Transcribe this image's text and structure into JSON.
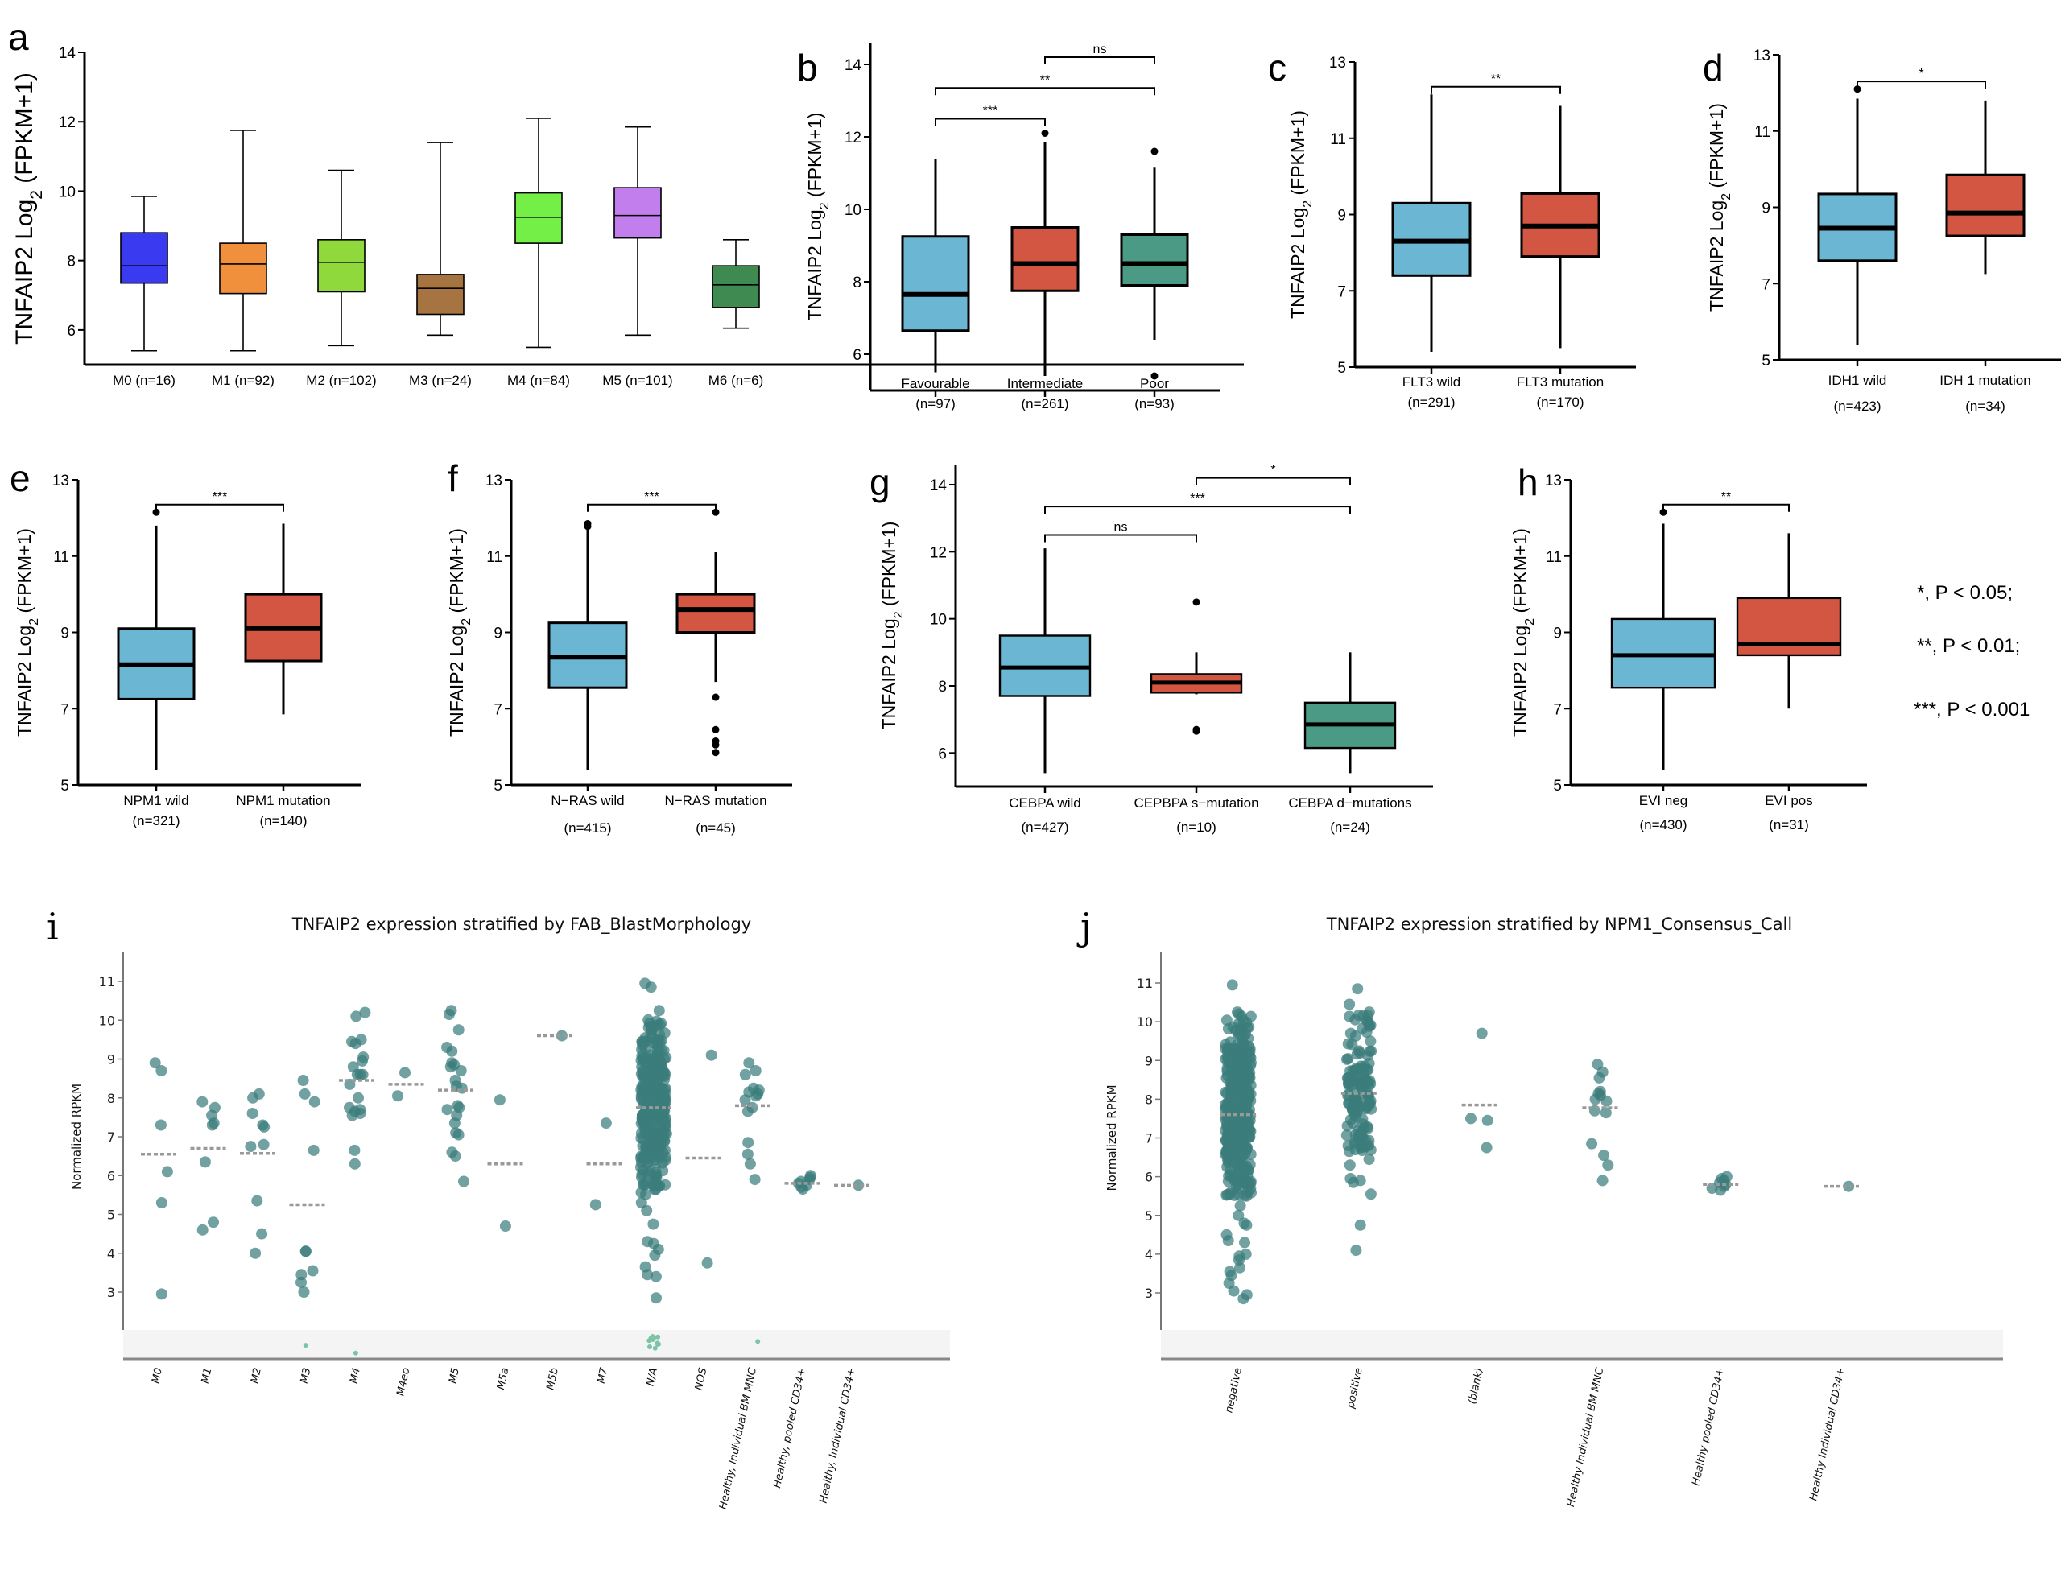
{
  "figure": {
    "legend_lines": [
      "*, P < 0.05;",
      "**, P < 0.01;",
      "***, P < 0.001"
    ]
  },
  "chart_data": [
    {
      "panel": "a",
      "type": "box",
      "ylabel_main": "TNFAIP2  Log",
      "ylabel_sub": "2",
      "ylabel_tail": " (FPKM+1)",
      "ylim": [
        5,
        14
      ],
      "yticks": [
        6,
        8,
        10,
        12,
        14
      ],
      "whisker_caps": true,
      "categories": [
        "M0 (n=16)",
        "M1 (n=92)",
        "M2 (n=102)",
        "M3 (n=24)",
        "M4 (n=84)",
        "M5 (n=101)",
        "M6 (n=6)"
      ],
      "boxes": [
        {
          "min": 5.4,
          "q1": 7.35,
          "median": 7.85,
          "q3": 8.8,
          "max": 9.85,
          "color": "#3a3af0"
        },
        {
          "min": 5.4,
          "q1": 7.05,
          "median": 7.9,
          "q3": 8.5,
          "max": 11.75,
          "color": "#f0903c"
        },
        {
          "min": 5.55,
          "q1": 7.1,
          "median": 7.95,
          "q3": 8.6,
          "max": 10.6,
          "color": "#8fd93c"
        },
        {
          "min": 5.85,
          "q1": 6.45,
          "median": 7.2,
          "q3": 7.6,
          "max": 11.4,
          "color": "#a57441"
        },
        {
          "min": 5.5,
          "q1": 8.5,
          "median": 9.25,
          "q3": 9.95,
          "max": 12.1,
          "color": "#74ef48"
        },
        {
          "min": 5.85,
          "q1": 8.65,
          "median": 9.3,
          "q3": 10.1,
          "max": 11.85,
          "color": "#c17eec"
        },
        {
          "min": 6.05,
          "q1": 6.65,
          "median": 7.3,
          "q3": 7.85,
          "max": 8.6,
          "color": "#3e8a51"
        }
      ],
      "significance": []
    },
    {
      "panel": "b",
      "type": "box",
      "ylabel_main": "TNFAIP2  Log",
      "ylabel_sub": "2",
      "ylabel_tail": " (FPKM+1)",
      "ylim": [
        5,
        14.6
      ],
      "yticks": [
        6,
        8,
        10,
        12,
        14
      ],
      "categories": [
        "Favourable",
        "Intermediate",
        "Poor"
      ],
      "n_labels": [
        "(n=97)",
        "(n=261)",
        "(n=93)"
      ],
      "boxes": [
        {
          "min": 5.5,
          "q1": 6.65,
          "median": 7.65,
          "q3": 9.25,
          "max": 11.4,
          "outliers": [],
          "color": "#6bb6d3"
        },
        {
          "min": 5.4,
          "q1": 7.75,
          "median": 8.5,
          "q3": 9.5,
          "max": 11.85,
          "outliers": [
            12.1
          ],
          "color": "#d35642"
        },
        {
          "min": 6.4,
          "q1": 7.9,
          "median": 8.5,
          "q3": 9.3,
          "max": 11.15,
          "outliers": [
            11.6,
            5.4
          ],
          "color": "#4a9a85"
        }
      ],
      "significance": [
        {
          "from": 0,
          "to": 1,
          "y": 12.5,
          "label": "***"
        },
        {
          "from": 0,
          "to": 2,
          "y": 13.35,
          "label": "**"
        },
        {
          "from": 1,
          "to": 2,
          "y": 14.2,
          "label": "ns"
        }
      ]
    },
    {
      "panel": "c",
      "type": "box",
      "ylabel_main": "TNFAIP2  Log",
      "ylabel_sub": "2",
      "ylabel_tail": " (FPKM+1)",
      "ylim": [
        5,
        13
      ],
      "yticks": [
        5,
        7,
        9,
        11,
        13
      ],
      "categories": [
        "FLT3 wild",
        "FLT3 mutation"
      ],
      "n_labels": [
        "(n=291)",
        "(n=170)"
      ],
      "boxes": [
        {
          "min": 5.4,
          "q1": 7.4,
          "median": 8.3,
          "q3": 9.3,
          "max": 12.15,
          "outliers": [],
          "color": "#6bb6d3"
        },
        {
          "min": 5.5,
          "q1": 7.9,
          "median": 8.7,
          "q3": 9.55,
          "max": 11.85,
          "outliers": [],
          "color": "#d35642"
        }
      ],
      "significance": [
        {
          "from": 0,
          "to": 1,
          "y": 12.35,
          "label": "**"
        }
      ]
    },
    {
      "panel": "d",
      "type": "box",
      "ylabel_main": "TNFAIP2  Log",
      "ylabel_sub": "2",
      "ylabel_tail": " (FPKM+1)",
      "ylim": [
        5,
        13
      ],
      "yticks": [
        5,
        7,
        9,
        11,
        13
      ],
      "categories": [
        "IDH1 wild",
        "IDH 1 mutation"
      ],
      "n_labels": [
        "(n=423)",
        "(n=34)"
      ],
      "boxes": [
        {
          "min": 5.4,
          "q1": 7.6,
          "median": 8.45,
          "q3": 9.35,
          "max": 11.85,
          "outliers": [
            12.1
          ],
          "color": "#6bb6d3"
        },
        {
          "min": 7.25,
          "q1": 8.25,
          "median": 8.85,
          "q3": 9.85,
          "max": 11.8,
          "outliers": [],
          "color": "#d35642"
        }
      ],
      "significance": [
        {
          "from": 0,
          "to": 1,
          "y": 12.3,
          "label": "*"
        }
      ]
    },
    {
      "panel": "e",
      "type": "box",
      "ylabel_main": "TNFAIP2  Log",
      "ylabel_sub": "2",
      "ylabel_tail": " (FPKM+1)",
      "ylim": [
        5,
        13
      ],
      "yticks": [
        5,
        7,
        9,
        11,
        13
      ],
      "categories": [
        "NPM1 wild",
        "NPM1 mutation"
      ],
      "n_labels": [
        "(n=321)",
        "(n=140)"
      ],
      "boxes": [
        {
          "min": 5.4,
          "q1": 7.25,
          "median": 8.15,
          "q3": 9.1,
          "max": 11.8,
          "outliers": [
            12.15
          ],
          "color": "#6bb6d3"
        },
        {
          "min": 6.85,
          "q1": 8.25,
          "median": 9.1,
          "q3": 10.0,
          "max": 11.85,
          "outliers": [],
          "color": "#d35642"
        }
      ],
      "significance": [
        {
          "from": 0,
          "to": 1,
          "y": 12.35,
          "label": "***"
        }
      ]
    },
    {
      "panel": "f",
      "type": "box",
      "ylabel_main": "TNFAIP2  Log",
      "ylabel_sub": "2",
      "ylabel_tail": " (FPKM+1)",
      "ylim": [
        5,
        13
      ],
      "yticks": [
        5,
        7,
        9,
        11,
        13
      ],
      "categories": [
        "N−RAS wild",
        "N−RAS mutation"
      ],
      "n_labels": [
        "(n=415)",
        "(n=45)"
      ],
      "boxes": [
        {
          "min": 5.4,
          "q1": 7.55,
          "median": 8.35,
          "q3": 9.25,
          "max": 11.75,
          "outliers": [
            11.85,
            11.78
          ],
          "color": "#6bb6d3"
        },
        {
          "min": 7.7,
          "q1": 9.0,
          "median": 9.6,
          "q3": 10.0,
          "max": 11.1,
          "outliers": [
            12.15,
            7.3,
            6.45,
            6.15,
            6.05,
            5.85
          ],
          "color": "#d35642"
        }
      ],
      "significance": [
        {
          "from": 0,
          "to": 1,
          "y": 12.35,
          "label": "***"
        }
      ]
    },
    {
      "panel": "g",
      "type": "box",
      "ylabel_main": "TNFAIP2  Log",
      "ylabel_sub": "2",
      "ylabel_tail": " (FPKM+1)",
      "ylim": [
        5,
        14.6
      ],
      "yticks": [
        6,
        8,
        10,
        12,
        14
      ],
      "categories": [
        "CEBPA wild",
        "CEPBPA s−mutation",
        "CEBPA d−mutations"
      ],
      "n_labels": [
        "(n=427)",
        "(n=10)",
        "(n=24)"
      ],
      "boxes": [
        {
          "min": 5.4,
          "q1": 7.7,
          "median": 8.55,
          "q3": 9.5,
          "max": 12.1,
          "outliers": [],
          "color": "#6bb6d3"
        },
        {
          "min": 7.75,
          "q1": 7.8,
          "median": 8.1,
          "q3": 8.35,
          "max": 9.0,
          "outliers": [
            10.5,
            6.7,
            6.65
          ],
          "color": "#d35642"
        },
        {
          "min": 5.4,
          "q1": 6.15,
          "median": 6.85,
          "q3": 7.5,
          "max": 9.0,
          "outliers": [],
          "color": "#4a9a85"
        }
      ],
      "significance": [
        {
          "from": 0,
          "to": 1,
          "y": 12.5,
          "label": "ns"
        },
        {
          "from": 0,
          "to": 2,
          "y": 13.35,
          "label": "***"
        },
        {
          "from": 1,
          "to": 2,
          "y": 14.2,
          "label": "*"
        }
      ]
    },
    {
      "panel": "h",
      "type": "box",
      "ylabel_main": "TNFAIP2  Log",
      "ylabel_sub": "2",
      "ylabel_tail": " (FPKM+1)",
      "ylim": [
        5,
        13
      ],
      "yticks": [
        5,
        7,
        9,
        11,
        13
      ],
      "categories": [
        "EVI neg",
        "EVI pos"
      ],
      "n_labels": [
        "(n=430)",
        "(n=31)"
      ],
      "boxes": [
        {
          "min": 5.4,
          "q1": 7.55,
          "median": 8.4,
          "q3": 9.35,
          "max": 11.85,
          "outliers": [
            12.15
          ],
          "color": "#6bb6d3"
        },
        {
          "min": 7.0,
          "q1": 8.4,
          "median": 8.7,
          "q3": 9.9,
          "max": 11.6,
          "outliers": [],
          "color": "#d35642"
        }
      ],
      "significance": [
        {
          "from": 0,
          "to": 1,
          "y": 12.35,
          "label": "**"
        }
      ]
    },
    {
      "panel": "i",
      "type": "scatter",
      "title": "TNFAIP2 expression stratified by FAB_BlastMorphology",
      "ylabel": "Normalized RPKM",
      "ylim": [
        2,
        11.6
      ],
      "yticks": [
        3,
        4,
        5,
        6,
        7,
        8,
        9,
        10,
        11
      ],
      "point_color": "#3a7d7b",
      "below_range_color": "#7cc4a6",
      "median_color": "#999999",
      "categories": [
        {
          "label": "M0",
          "median": 6.55,
          "values": [
            8.7,
            8.9,
            7.3,
            6.1,
            5.3,
            2.95
          ],
          "below": 0
        },
        {
          "label": "M1",
          "median": 6.7,
          "values": [
            7.9,
            7.75,
            7.55,
            7.35,
            7.3,
            6.35,
            4.8,
            4.6
          ],
          "below": 0
        },
        {
          "label": "M2",
          "median": 6.57,
          "values": [
            8.1,
            8.0,
            7.6,
            7.3,
            7.25,
            6.8,
            6.75,
            5.35,
            4.5,
            4.0
          ],
          "below": 0
        },
        {
          "label": "M3",
          "median": 5.25,
          "values": [
            8.45,
            8.1,
            7.9,
            6.65,
            4.05,
            4.05,
            3.55,
            3.45,
            3.25,
            3.0
          ],
          "below": 1
        },
        {
          "label": "M4",
          "median": 8.45,
          "values": [
            10.2,
            10.1,
            9.5,
            9.45,
            9.4,
            9.05,
            8.95,
            8.8,
            8.6,
            8.6,
            8.6,
            8.35,
            8.0,
            7.75,
            7.7,
            7.65,
            7.6,
            7.55,
            6.65,
            6.3
          ],
          "below": 1
        },
        {
          "label": "M4eo",
          "median": 8.35,
          "values": [
            8.65,
            8.05
          ],
          "below": 0
        },
        {
          "label": "M5",
          "median": 8.2,
          "values": [
            10.25,
            10.15,
            9.75,
            9.3,
            9.2,
            8.9,
            8.85,
            8.8,
            8.7,
            8.45,
            8.3,
            8.25,
            7.8,
            7.75,
            7.7,
            7.55,
            7.35,
            7.1,
            7.05,
            6.6,
            6.5,
            5.85
          ],
          "below": 0
        },
        {
          "label": "M5a",
          "median": 6.3,
          "values": [
            7.95,
            4.7
          ],
          "below": 0
        },
        {
          "label": "M5b",
          "median": 9.6,
          "values": [
            9.6
          ],
          "below": 0
        },
        {
          "label": "M7",
          "median": 6.3,
          "values": [
            7.35,
            5.25
          ],
          "below": 0
        },
        {
          "label": "N/A",
          "median": 7.75,
          "dense": {
            "n": 320,
            "min": 2.85,
            "max": 10.95,
            "low_tail": [
              5.3,
              5.1,
              4.75,
              4.3,
              4.25,
              4.1,
              3.95,
              3.65,
              3.45,
              3.4,
              2.85
            ],
            "high_tail": [
              10.95,
              10.85,
              10.25
            ]
          },
          "below": 12
        },
        {
          "label": "NOS",
          "median": 6.45,
          "values": [
            9.1,
            3.75
          ],
          "below": 0
        },
        {
          "label": "Healthy, Individual BM MNC",
          "median": 7.8,
          "values": [
            8.9,
            8.7,
            8.6,
            8.25,
            8.2,
            8.15,
            8.1,
            8.05,
            7.95,
            7.75,
            7.65,
            6.85,
            6.55,
            6.3,
            5.9
          ],
          "below": 1
        },
        {
          "label": "Healthy, pooled CD34+",
          "median": 5.8,
          "values": [
            6.0,
            5.95,
            5.9,
            5.85,
            5.8,
            5.75,
            5.7,
            5.65
          ],
          "below": 0
        },
        {
          "label": "Healthy, Individual CD34+",
          "median": 5.75,
          "values": [
            5.75
          ],
          "below": 0
        }
      ]
    },
    {
      "panel": "j",
      "type": "scatter",
      "title": "TNFAIP2 expression stratified by NPM1_Consensus_Call",
      "ylabel": "Normalized RPKM",
      "ylim": [
        2,
        11.6
      ],
      "yticks": [
        3,
        4,
        5,
        6,
        7,
        8,
        9,
        10,
        11
      ],
      "point_color": "#3a7d7b",
      "median_color": "#999999",
      "categories": [
        {
          "label": "negative",
          "median": 7.6,
          "dense": {
            "n": 380,
            "min": 2.85,
            "max": 10.95,
            "low_tail": [
              5.25,
              5.0,
              4.8,
              4.75,
              4.5,
              4.35,
              4.3,
              4.0,
              3.95,
              3.85,
              3.65,
              3.55,
              3.45,
              3.25,
              3.05,
              2.95,
              2.85
            ],
            "high_tail": [
              10.95,
              10.25,
              10.2
            ]
          }
        },
        {
          "label": "positive",
          "median": 8.15,
          "dense": {
            "n": 140,
            "min": 4.1,
            "max": 10.85,
            "low_tail": [
              6.3,
              6.45,
              5.95,
              5.9,
              5.85,
              5.55,
              4.75,
              4.1
            ],
            "high_tail": [
              10.85,
              10.45,
              10.25
            ]
          }
        },
        {
          "label": "(blank)",
          "median": 7.85,
          "values": [
            9.7,
            7.5,
            7.45,
            6.75
          ]
        },
        {
          "label": "Healthy Individual BM MNC",
          "median": 7.78,
          "values": [
            8.9,
            8.7,
            8.55,
            8.2,
            8.15,
            8.1,
            8.0,
            7.95,
            7.7,
            7.65,
            6.85,
            6.55,
            6.3,
            5.9
          ]
        },
        {
          "label": "Healthy pooled CD34+",
          "median": 5.8,
          "values": [
            6.0,
            5.95,
            5.9,
            5.85,
            5.8,
            5.75,
            5.7,
            5.65
          ]
        },
        {
          "label": "Healthy Individual CD34+",
          "median": 5.75,
          "values": [
            5.75
          ]
        }
      ]
    }
  ]
}
